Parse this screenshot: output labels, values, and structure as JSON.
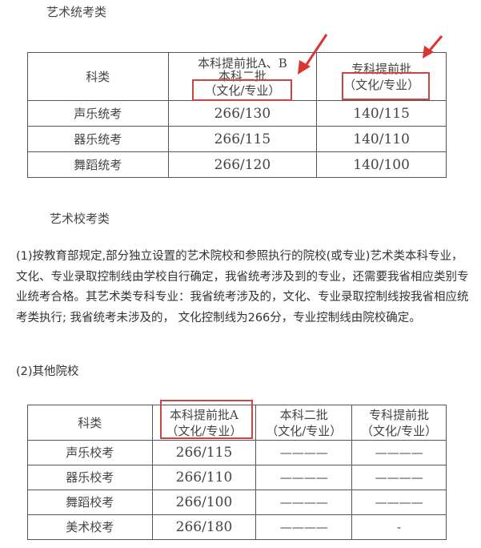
{
  "section1_title": "艺术统考类",
  "table1": {
    "headers": [
      "科类",
      "本科提前批A、B",
      "本科二批",
      "（文化/专业）",
      "专科提前批",
      "（文化/专业）"
    ],
    "rows": [
      [
        "声乐统考",
        "266/130",
        "140/115"
      ],
      [
        "器乐统考",
        "266/115",
        "140/110"
      ],
      [
        "舞蹈统考",
        "266/120",
        "140/100"
      ]
    ]
  },
  "section2_title": "艺术校考类",
  "paragraph1": "(1)按教育部规定,部分独立设置的艺术院校和参照执行的院校(或专业)艺术类本科专业，文化、专业录取控制线由学校自行确定，我省统考涉及到的专业，还需要我省相应类别专业统考合格。其艺术类专科专业：我省统考涉及的，文化、专业录取控制线按我省相应统考类执行; 我省统考未涉及的， 文化控制线为266分，专业控制线由院校确定。",
  "paragraph2": "(2)其他院校",
  "table2": {
    "headers": [
      "科类",
      "本科提前批A",
      "（文化/专业）",
      "本科二批",
      "（文化/专业）",
      "专科提前批",
      "（文化/专业）"
    ],
    "rows": [
      [
        "声乐校考",
        "266/115",
        "————",
        "————"
      ],
      [
        "器乐校考",
        "266/110",
        "————",
        "————"
      ],
      [
        "舞蹈校考",
        "266/100",
        "————",
        "————"
      ],
      [
        "美术校考",
        "266/180",
        "————",
        "-"
      ]
    ]
  },
  "highlight_color": "#cc4444"
}
